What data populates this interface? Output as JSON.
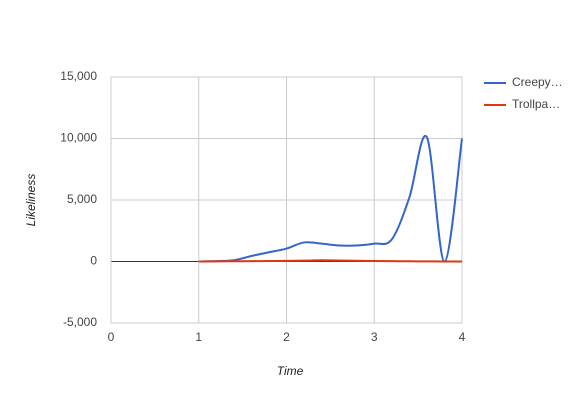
{
  "chart_data": {
    "type": "line",
    "x_label": "Time",
    "y_label": "Likeliness",
    "x": [
      1,
      1.2,
      1.4,
      1.6,
      1.8,
      2.0,
      2.2,
      2.4,
      2.6,
      2.8,
      3.0,
      3.2,
      3.4,
      3.6,
      3.8,
      4.0
    ],
    "series": [
      {
        "name": "Creepy…",
        "color": "#3366cc",
        "values": [
          0,
          30,
          100,
          450,
          750,
          1050,
          1550,
          1450,
          1300,
          1300,
          1450,
          1800,
          5200,
          10100,
          0,
          10000
        ]
      },
      {
        "name": "Trollpa…",
        "color": "#dc3912",
        "values": [
          0,
          10,
          20,
          30,
          40,
          50,
          70,
          100,
          80,
          60,
          40,
          30,
          20,
          10,
          0,
          0
        ]
      }
    ],
    "xlim": [
      0,
      4
    ],
    "xticks": [
      0,
      1,
      2,
      3,
      4
    ],
    "ylim": [
      -5000,
      15000
    ],
    "yticks": [
      {
        "value": -5000,
        "label": "-5,000"
      },
      0,
      {
        "value": 5000,
        "label": "5,000"
      },
      {
        "value": 10000,
        "label": "10,000"
      },
      {
        "value": 15000,
        "label": "15,000"
      }
    ],
    "grid": true,
    "legend": "right"
  }
}
